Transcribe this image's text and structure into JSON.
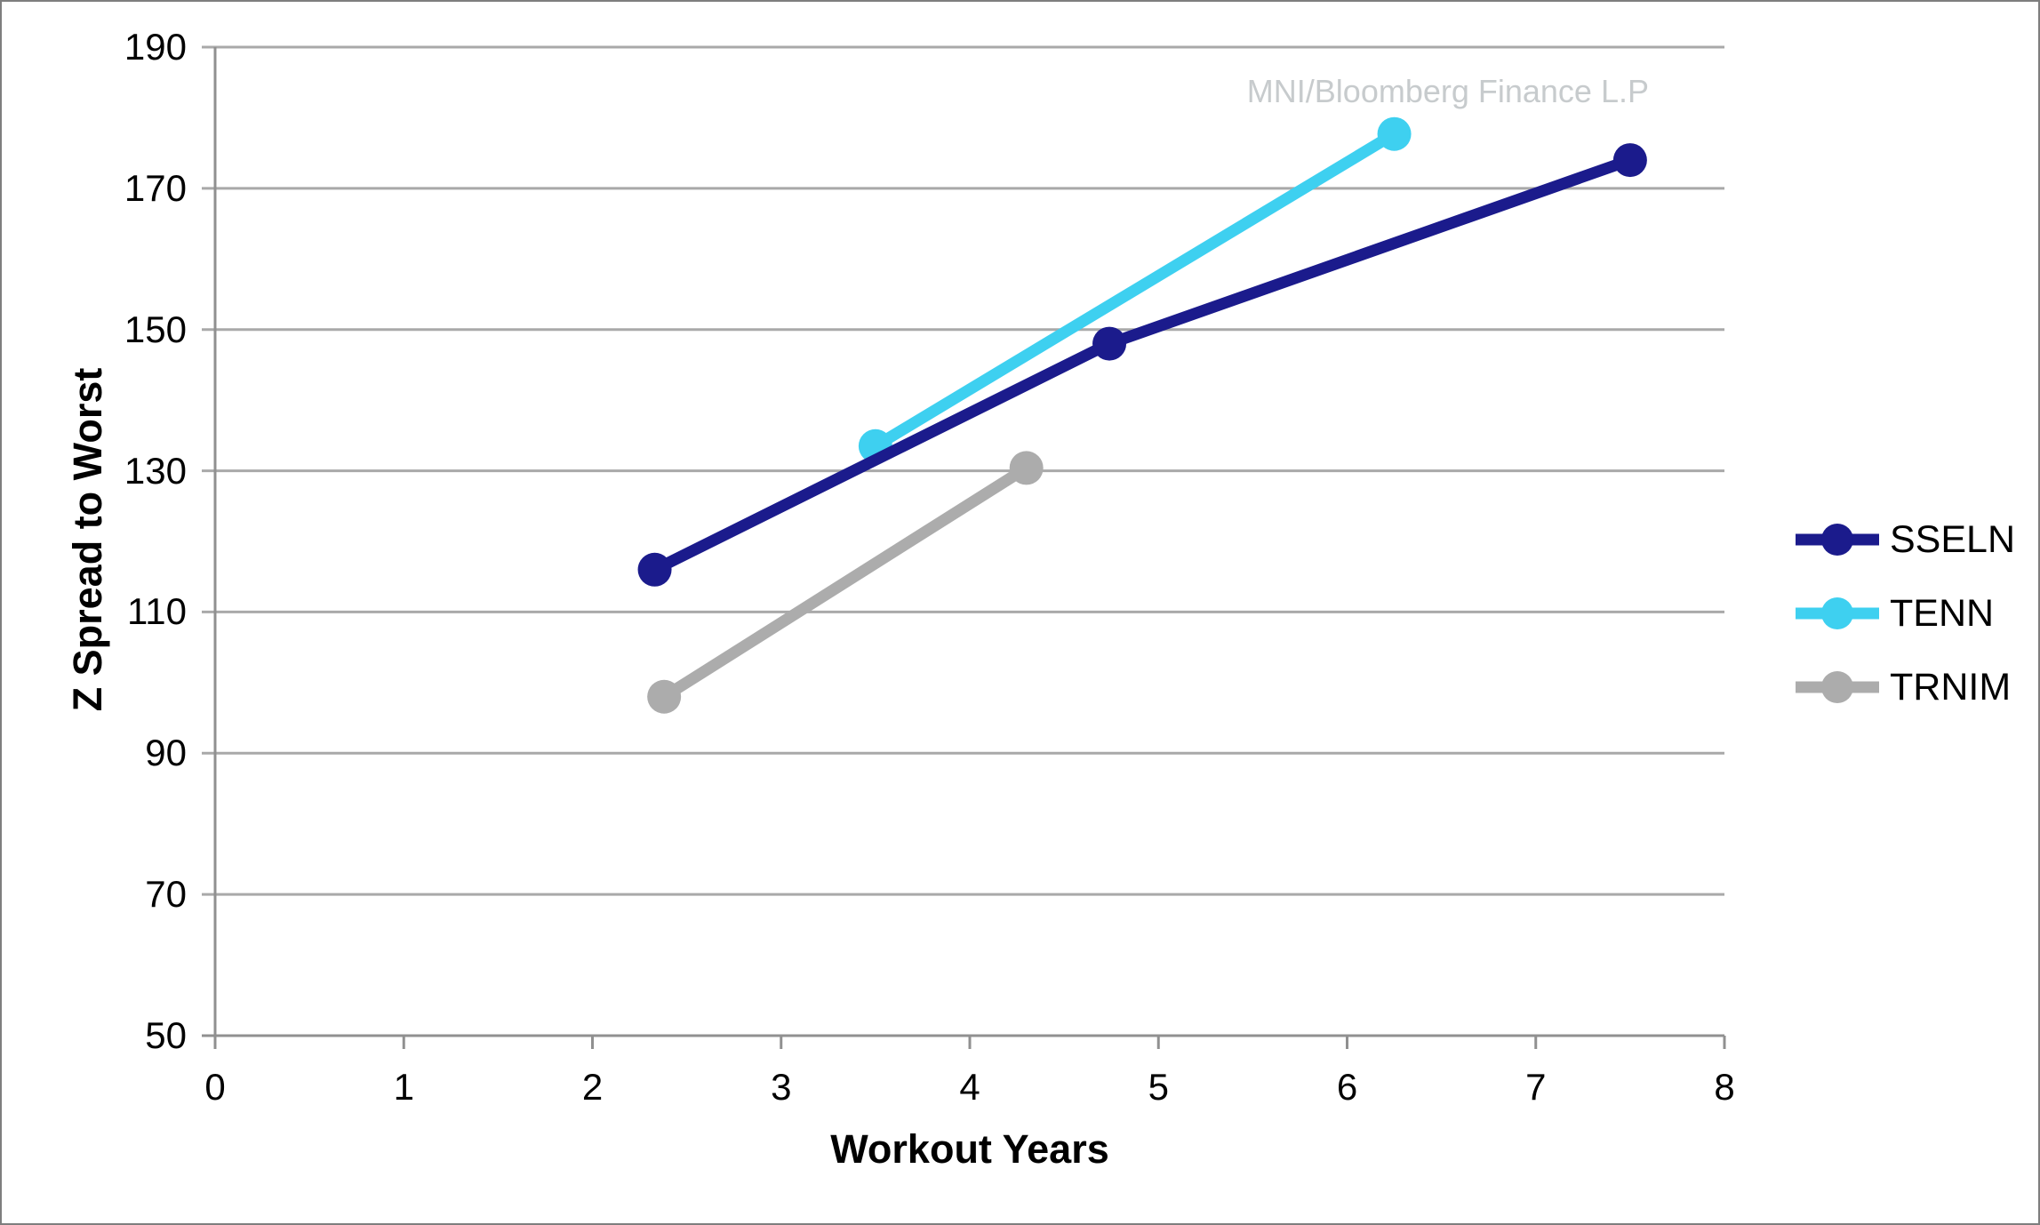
{
  "watermark": "MNI/Bloomberg Finance L.P",
  "colors": {
    "gridline": "#a9a9a9",
    "axis": "#909090",
    "watermark": "#c7cbcd",
    "text": "#000000",
    "background": "#ffffff"
  },
  "chart_data": {
    "type": "line",
    "title": "",
    "xlabel": "Workout Years",
    "ylabel": "Z Spread to Worst",
    "xlim": [
      0,
      8
    ],
    "ylim": [
      50,
      190
    ],
    "x_ticks": [
      0,
      1,
      2,
      3,
      4,
      5,
      6,
      7,
      8
    ],
    "y_ticks": [
      50,
      70,
      90,
      110,
      130,
      150,
      170,
      190
    ],
    "grid": "horizontal",
    "legend_position": "right",
    "legend_entries": [
      "SSELN",
      "TENN",
      "TRNIM"
    ],
    "series": [
      {
        "name": "SSELN",
        "color": "#1b1b8c",
        "points": [
          [
            2.33,
            116
          ],
          [
            4.74,
            148
          ],
          [
            7.5,
            174
          ]
        ]
      },
      {
        "name": "TENN",
        "color": "#3ed0f0",
        "points": [
          [
            3.5,
            133.5
          ],
          [
            6.25,
            177.7
          ]
        ]
      },
      {
        "name": "TRNIM",
        "color": "#acacac",
        "points": [
          [
            2.38,
            98
          ],
          [
            4.3,
            130.4
          ]
        ]
      }
    ]
  }
}
